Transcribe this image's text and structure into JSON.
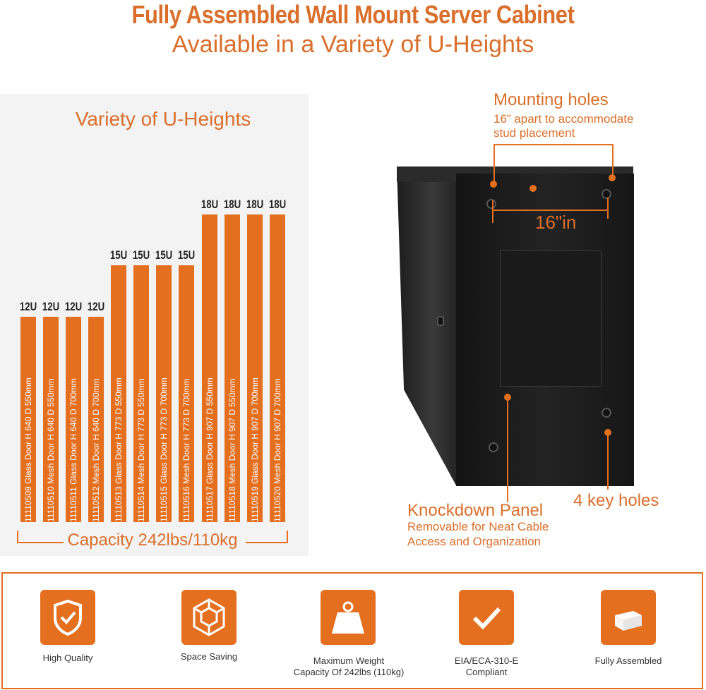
{
  "header": {
    "title": "Fully Assembled Wall Mount Server Cabinet",
    "subtitle": "Available in a Variety of U-Heights"
  },
  "heights_panel": {
    "title": "Variety of U-Heights",
    "capacity": "Capacity 242lbs/110kg",
    "bars": [
      {
        "u": "12U",
        "label": "11110509 Glass Door  H 640  D 550mm"
      },
      {
        "u": "12U",
        "label": "11110510 Mesh Door  H 640  D 550mm"
      },
      {
        "u": "12U",
        "label": "11110511 Glass Door  H 640  D 700mm"
      },
      {
        "u": "12U",
        "label": "11110512 Mesh Door  H 640  D 700mm"
      },
      {
        "u": "15U",
        "label": "11110513 Glass Door  H 773  D 550mm"
      },
      {
        "u": "15U",
        "label": "11110514 Mesh Door  H 773  D 550mm"
      },
      {
        "u": "15U",
        "label": "11110515 Glass Door  H 773  D 700mm"
      },
      {
        "u": "15U",
        "label": "11110516 Mesh Door  H 773  D 700mm"
      },
      {
        "u": "18U",
        "label": "11110517 Glass Door  H 907  D 550mm"
      },
      {
        "u": "18U",
        "label": "11110518 Mesh Door  H 907  D 550mm"
      },
      {
        "u": "18U",
        "label": "11110519 Glass Door  H 907  D 700mm"
      },
      {
        "u": "18U",
        "label": "11110520 Mesh Door  H 907  D 700mm"
      }
    ]
  },
  "cabinet": {
    "mounting_title": "Mounting holes",
    "mounting_desc_1": "16” apart to accommodate",
    "mounting_desc_2": "stud placement",
    "distance": "16\"in",
    "knockdown_title": "Knockdown Panel",
    "knockdown_desc_1": "Removable for Neat Cable",
    "knockdown_desc_2": "Access and Organization",
    "keyholes": "4 key holes"
  },
  "features": [
    {
      "icon": "shield-check-icon",
      "label": "High Quality"
    },
    {
      "icon": "cube-icon",
      "label": "Space Saving"
    },
    {
      "icon": "weight-icon",
      "label_1": "Maximum Weight",
      "label_2": "Capacity Of 242lbs (110kg)"
    },
    {
      "icon": "checkmark-icon",
      "label_1": "EIA/ECA-310-E",
      "label_2": "Compliant"
    },
    {
      "icon": "box-icon",
      "label": "Fully Assembled"
    }
  ],
  "colors": {
    "accent": "#e46f1f",
    "title": "#d96f2b"
  }
}
